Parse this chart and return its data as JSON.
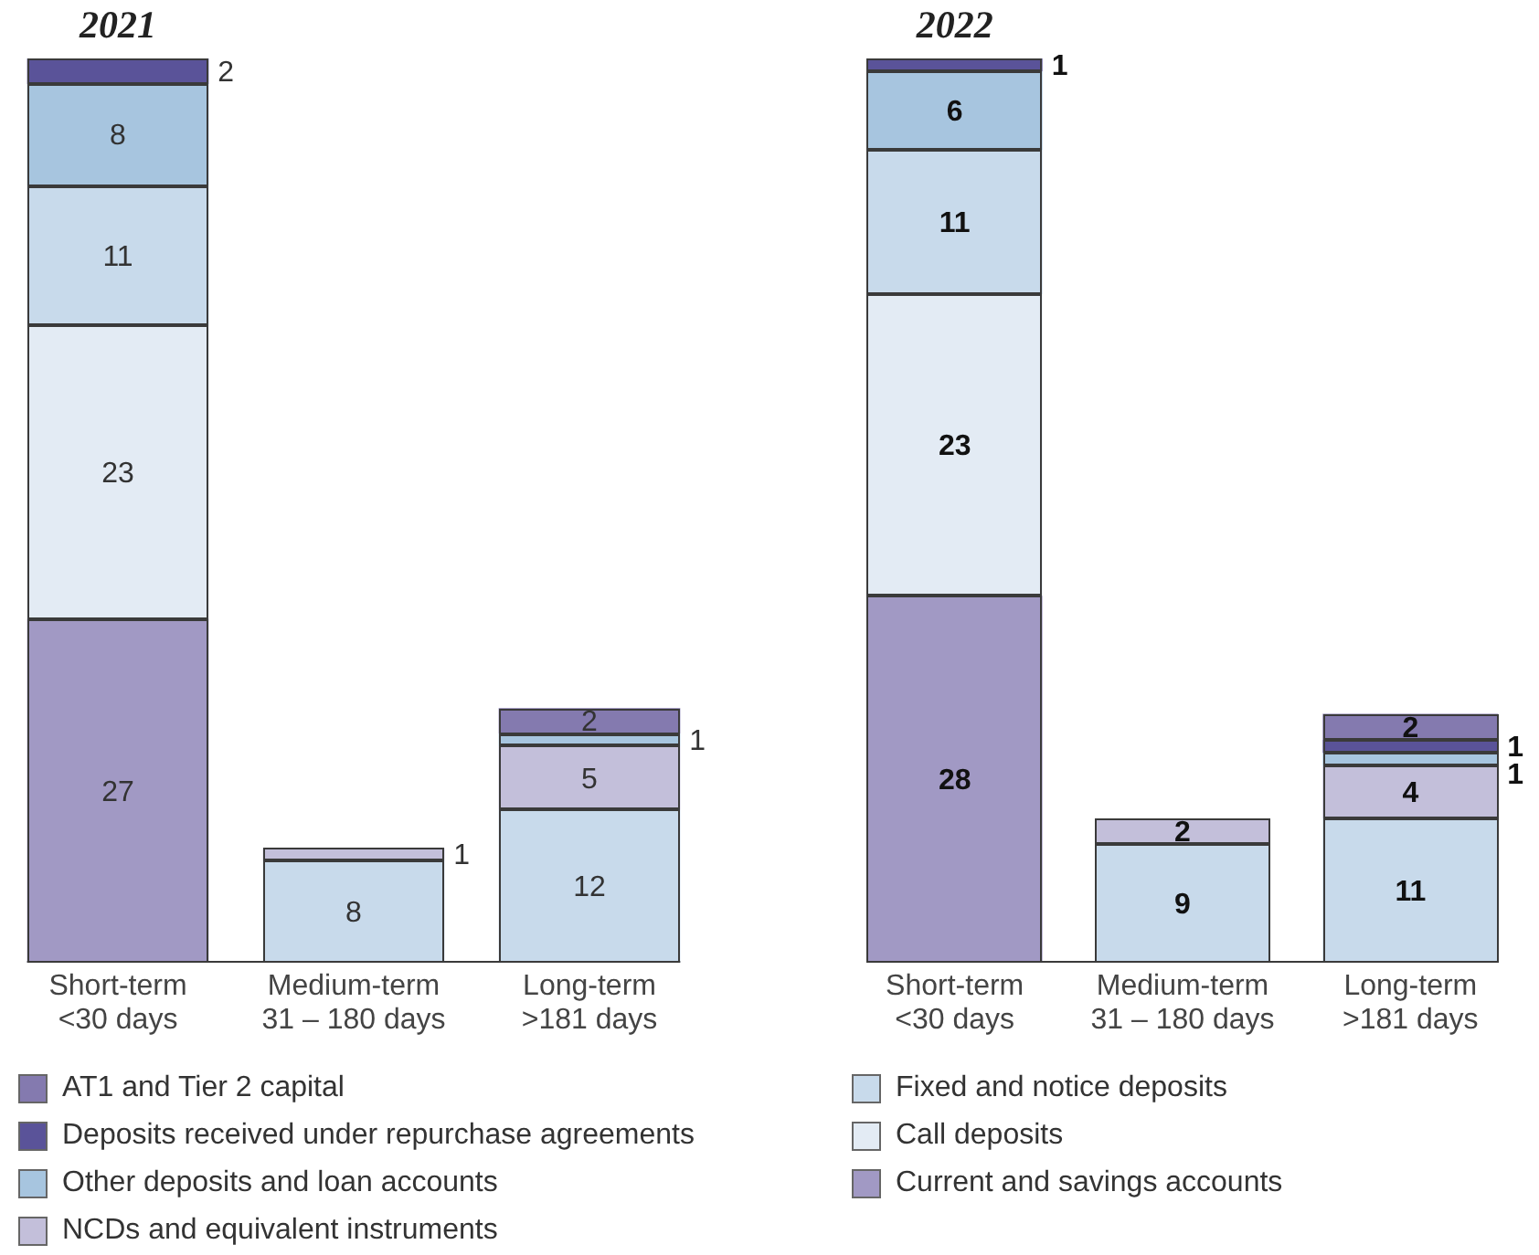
{
  "chart_data": [
    {
      "type": "bar",
      "title": "2021",
      "categories": [
        "Short-term\n<30 days",
        "Medium-term\n31 – 180 days",
        "Long-term\n>181 days"
      ],
      "stacked": true,
      "data_labels": true,
      "legend": "bottom",
      "series": [
        {
          "name": "Current and savings accounts",
          "color": "#a199c4",
          "values": [
            27,
            null,
            null
          ]
        },
        {
          "name": "Call deposits",
          "color": "#e3ebf4",
          "values": [
            23,
            null,
            null
          ]
        },
        {
          "name": "Fixed and notice deposits",
          "color": "#c8daeb",
          "values": [
            11,
            8,
            12
          ]
        },
        {
          "name": "NCDs and equivalent instruments",
          "color": "#c3bfda",
          "values": [
            null,
            1,
            5
          ]
        },
        {
          "name": "Other deposits and loan accounts",
          "color": "#a7c5df",
          "values": [
            8,
            null,
            1
          ]
        },
        {
          "name": "Deposits received under repurchase agreements",
          "color": "#5a5399",
          "values": [
            2,
            null,
            null
          ]
        },
        {
          "name": "AT1 and Tier 2 capital",
          "color": "#847aaf",
          "values": [
            null,
            null,
            2
          ]
        }
      ]
    },
    {
      "type": "bar",
      "title": "2022",
      "categories": [
        "Short-term\n<30 days",
        "Medium-term\n31 – 180 days",
        "Long-term\n>181 days"
      ],
      "stacked": true,
      "data_labels": true,
      "series": [
        {
          "color": "#a199c4",
          "values": [
            28,
            null,
            null
          ]
        },
        {
          "color": "#e3ebf4",
          "values": [
            23,
            null,
            null
          ]
        },
        {
          "color": "#c8daeb",
          "values": [
            11,
            9,
            11
          ]
        },
        {
          "color": "#c3bfda",
          "values": [
            null,
            2,
            4
          ]
        },
        {
          "color": "#a7c5df",
          "values": [
            6,
            null,
            1
          ]
        },
        {
          "color": "#5a5399",
          "values": [
            1,
            null,
            1
          ]
        },
        {
          "color": "#847aaf",
          "values": [
            null,
            null,
            2
          ]
        }
      ]
    }
  ]
}
